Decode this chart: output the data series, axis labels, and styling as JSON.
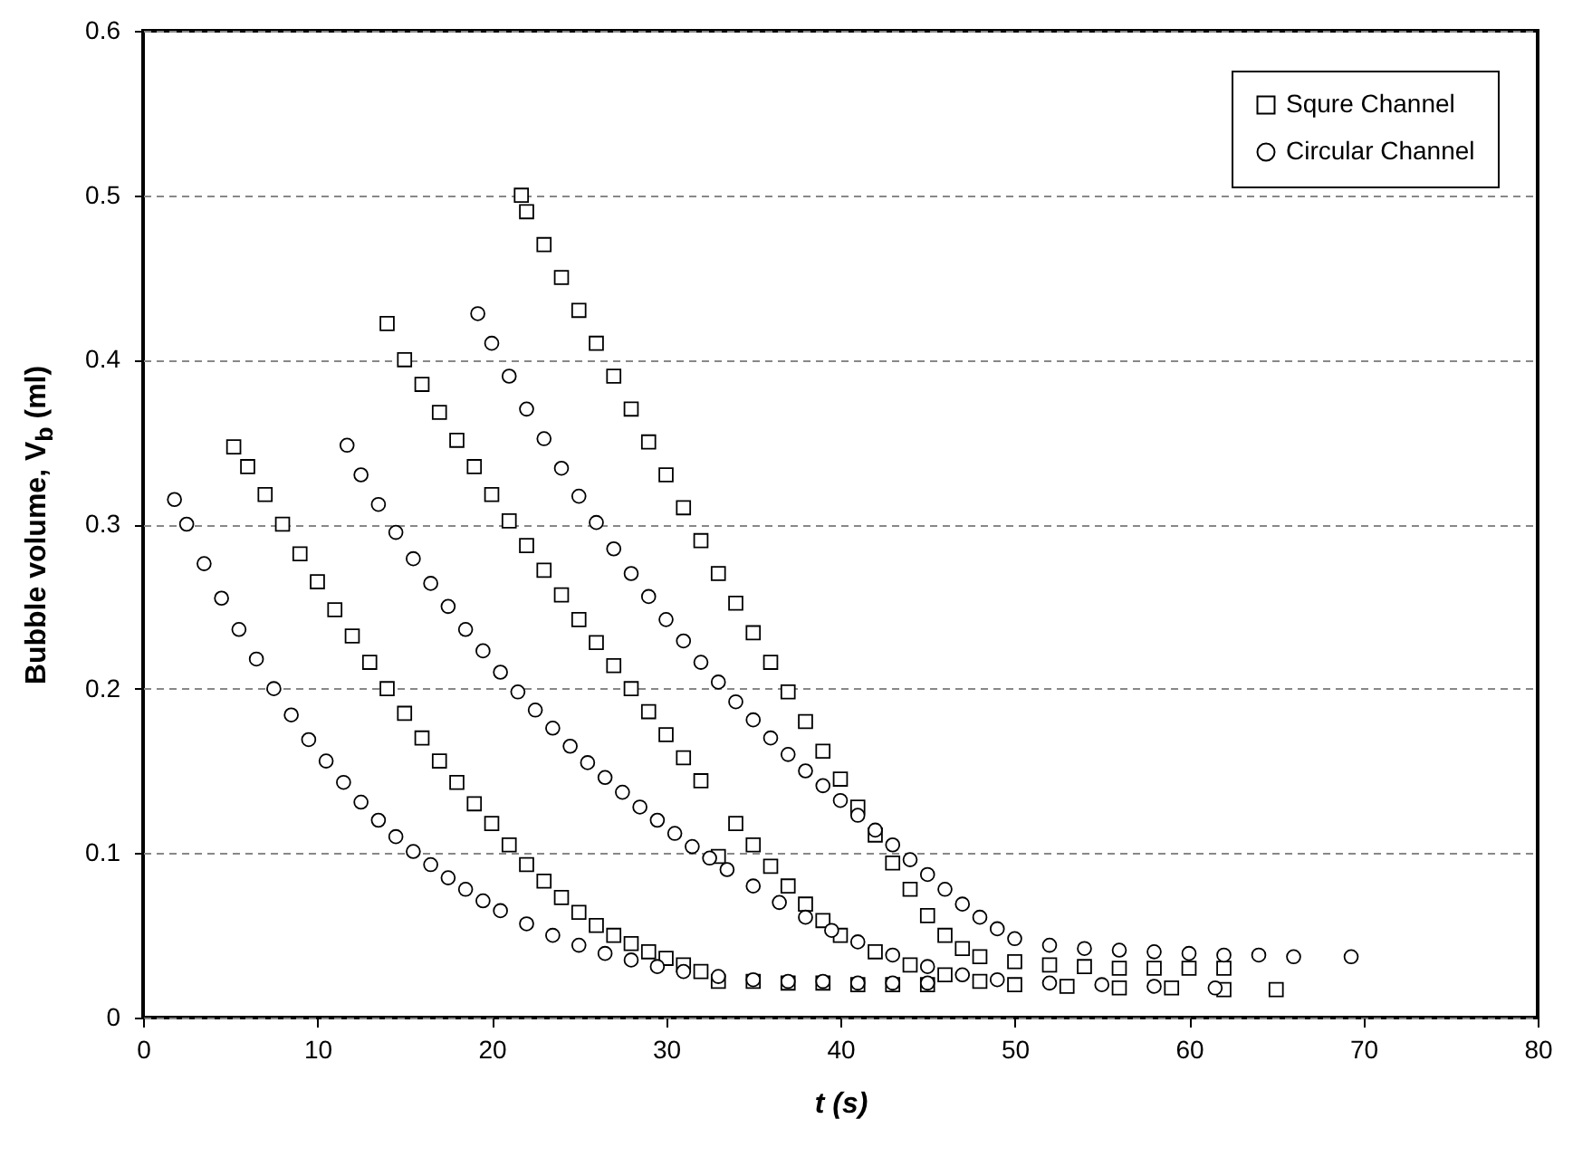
{
  "chart_data": {
    "type": "scatter",
    "xlabel": "t (s)",
    "ylabel": "Bubble volume, V$_{b}$ (ml)",
    "xlim": [
      0,
      80
    ],
    "ylim": [
      0,
      0.6
    ],
    "xticks": [
      0,
      10,
      20,
      30,
      40,
      50,
      60,
      70,
      80
    ],
    "yticks": [
      {
        "value": 0,
        "label": "0"
      },
      0.1,
      0.2,
      0.3,
      0.4,
      0.5,
      0.6
    ],
    "grid": "y",
    "legend": "top right",
    "series": [
      {
        "name": "Squre Channel",
        "color": "#000000",
        "marker": "square",
        "x": [
          5.2,
          6,
          7,
          8,
          9,
          10,
          11,
          12,
          13,
          14,
          15,
          16,
          17,
          18,
          19,
          20,
          21,
          22,
          23,
          24,
          25,
          26,
          27,
          28,
          29,
          30,
          31,
          32,
          33,
          35,
          37,
          39,
          41,
          43,
          45,
          14,
          15,
          16,
          17,
          18,
          19,
          20,
          21,
          22,
          23,
          24,
          25,
          26,
          27,
          28,
          29,
          30,
          31,
          32,
          33,
          34,
          35,
          36,
          37,
          38,
          39,
          40,
          42,
          44,
          46,
          48,
          50,
          53,
          56,
          59,
          62,
          65,
          21.7,
          22,
          23,
          24,
          25,
          26,
          27,
          28,
          29,
          30,
          31,
          32,
          33,
          34,
          35,
          36,
          37,
          38,
          39,
          40,
          41,
          42,
          43,
          44,
          45,
          46,
          47,
          48,
          50,
          52,
          54,
          56,
          58,
          60,
          62
        ],
        "values": [
          0.347,
          0.335,
          0.318,
          0.3,
          0.282,
          0.265,
          0.248,
          0.232,
          0.216,
          0.2,
          0.185,
          0.17,
          0.156,
          0.143,
          0.13,
          0.118,
          0.105,
          0.093,
          0.083,
          0.073,
          0.064,
          0.056,
          0.05,
          0.045,
          0.04,
          0.036,
          0.032,
          0.028,
          0.022,
          0.022,
          0.021,
          0.021,
          0.02,
          0.02,
          0.02,
          0.422,
          0.4,
          0.385,
          0.368,
          0.351,
          0.335,
          0.318,
          0.302,
          0.287,
          0.272,
          0.257,
          0.242,
          0.228,
          0.214,
          0.2,
          0.186,
          0.172,
          0.158,
          0.144,
          0.098,
          0.118,
          0.105,
          0.092,
          0.08,
          0.069,
          0.059,
          0.05,
          0.04,
          0.032,
          0.026,
          0.022,
          0.02,
          0.019,
          0.018,
          0.018,
          0.017,
          0.017,
          0.5,
          0.49,
          0.47,
          0.45,
          0.43,
          0.41,
          0.39,
          0.37,
          0.35,
          0.33,
          0.31,
          0.29,
          0.27,
          0.252,
          0.234,
          0.216,
          0.198,
          0.18,
          0.162,
          0.145,
          0.128,
          0.111,
          0.094,
          0.078,
          0.062,
          0.05,
          0.042,
          0.037,
          0.034,
          0.032,
          0.031,
          0.03,
          0.03,
          0.03,
          0.03
        ]
      },
      {
        "name": "Circular Channel",
        "color": "#000000",
        "marker": "circle",
        "x": [
          1.8,
          2.5,
          3.5,
          4.5,
          5.5,
          6.5,
          7.5,
          8.5,
          9.5,
          10.5,
          11.5,
          12.5,
          13.5,
          14.5,
          15.5,
          16.5,
          17.5,
          18.5,
          19.5,
          20.5,
          22,
          23.5,
          25,
          26.5,
          28,
          29.5,
          31,
          33,
          35,
          37,
          39,
          41,
          43,
          45,
          11.7,
          12.5,
          13.5,
          14.5,
          15.5,
          16.5,
          17.5,
          18.5,
          19.5,
          20.5,
          21.5,
          22.5,
          23.5,
          24.5,
          25.5,
          26.5,
          27.5,
          28.5,
          29.5,
          30.5,
          31.5,
          32.5,
          33.5,
          35,
          36.5,
          38,
          39.5,
          41,
          43,
          45,
          47,
          49,
          52,
          55,
          58,
          61.5,
          19.2,
          20,
          21,
          22,
          23,
          24,
          25,
          26,
          27,
          28,
          29,
          30,
          31,
          32,
          33,
          34,
          35,
          36,
          37,
          38,
          39,
          40,
          41,
          42,
          43,
          44,
          45,
          46,
          47,
          48,
          49,
          50,
          52,
          54,
          56,
          58,
          60,
          62,
          64,
          66,
          69.3
        ],
        "values": [
          0.315,
          0.3,
          0.276,
          0.255,
          0.236,
          0.218,
          0.2,
          0.184,
          0.169,
          0.156,
          0.143,
          0.131,
          0.12,
          0.11,
          0.101,
          0.093,
          0.085,
          0.078,
          0.071,
          0.065,
          0.057,
          0.05,
          0.044,
          0.039,
          0.035,
          0.031,
          0.028,
          0.025,
          0.023,
          0.022,
          0.022,
          0.021,
          0.021,
          0.021,
          0.348,
          0.33,
          0.312,
          0.295,
          0.279,
          0.264,
          0.25,
          0.236,
          0.223,
          0.21,
          0.198,
          0.187,
          0.176,
          0.165,
          0.155,
          0.146,
          0.137,
          0.128,
          0.12,
          0.112,
          0.104,
          0.097,
          0.09,
          0.08,
          0.07,
          0.061,
          0.053,
          0.046,
          0.038,
          0.031,
          0.026,
          0.023,
          0.021,
          0.02,
          0.019,
          0.018,
          0.428,
          0.41,
          0.39,
          0.37,
          0.352,
          0.334,
          0.317,
          0.301,
          0.285,
          0.27,
          0.256,
          0.242,
          0.229,
          0.216,
          0.204,
          0.192,
          0.181,
          0.17,
          0.16,
          0.15,
          0.141,
          0.132,
          0.123,
          0.114,
          0.105,
          0.096,
          0.087,
          0.078,
          0.069,
          0.061,
          0.054,
          0.048,
          0.044,
          0.042,
          0.041,
          0.04,
          0.039,
          0.038,
          0.038,
          0.037,
          0.037
        ]
      }
    ]
  }
}
